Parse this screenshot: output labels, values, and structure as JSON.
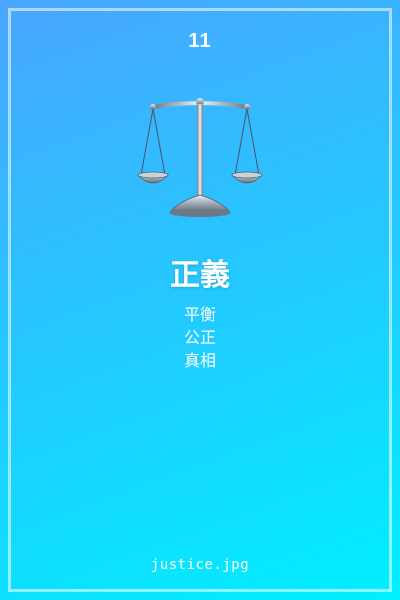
{
  "card": {
    "number": "11",
    "title": "正義",
    "keywords": [
      "平衡",
      "公正",
      "真相"
    ],
    "filename": "justice.jpg",
    "icon": "balance-scale-icon"
  },
  "colors": {
    "gradient_top": "#4aa6ff",
    "gradient_bottom": "#00f0ff",
    "text": "#ffffff"
  }
}
